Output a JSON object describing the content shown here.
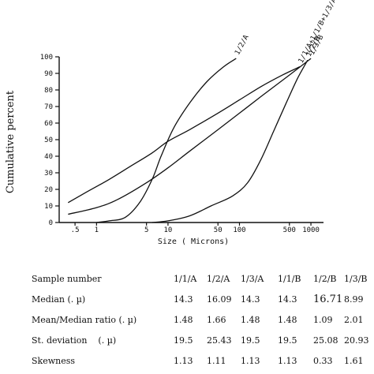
{
  "chart_data": {
    "type": "line",
    "x_scale": "log",
    "xlabel": "Size ( Microns)",
    "ylabel": "Cumulative percent",
    "ylim": [
      0,
      100
    ],
    "y_ticks": [
      "0",
      "10",
      "20",
      "30",
      "40",
      "50",
      "60",
      "70",
      "80",
      "90",
      "100"
    ],
    "x_ticks": [
      {
        "value": 0.5,
        "label": ".5"
      },
      {
        "value": 1,
        "label": "1"
      },
      {
        "value": 5,
        "label": "5"
      },
      {
        "value": 10,
        "label": "10"
      },
      {
        "value": 50,
        "label": "50"
      },
      {
        "value": 100,
        "label": "100"
      },
      {
        "value": 500,
        "label": "500"
      },
      {
        "value": 1000,
        "label": "1000"
      }
    ],
    "series": [
      {
        "name": "1/2/A",
        "x": [
          1,
          1.5,
          2.5,
          4,
          6,
          8,
          12,
          20,
          35,
          60,
          90
        ],
        "y": [
          0,
          1,
          3,
          12,
          26,
          40,
          57,
          72,
          85,
          94,
          99
        ]
      },
      {
        "name": "1/1/A+1/1/B+1/3/A",
        "x": [
          0.4,
          0.7,
          1.5,
          3,
          6,
          10,
          20,
          50,
          100,
          200,
          400,
          700
        ],
        "y": [
          12,
          18,
          26,
          34,
          42,
          49,
          56,
          66,
          74,
          82,
          89,
          94
        ]
      },
      {
        "name": "1/3/B",
        "x": [
          0.4,
          1,
          2,
          5,
          10,
          20,
          50,
          100,
          200,
          500,
          1000
        ],
        "y": [
          5,
          9,
          14,
          24,
          33,
          43,
          56,
          66,
          76,
          89,
          99
        ]
      },
      {
        "name": "1/2/B",
        "x": [
          6,
          10,
          20,
          40,
          80,
          130,
          200,
          300,
          450,
          650,
          900
        ],
        "y": [
          0,
          1,
          4,
          10,
          16,
          24,
          38,
          55,
          72,
          87,
          98
        ]
      }
    ]
  },
  "table": {
    "headers": [
      "Sample number",
      "1/1/A",
      "1/2/A",
      "1/3/A",
      "1/1/B",
      "1/2/B",
      "1/3/B"
    ],
    "rows": [
      {
        "label": "Median (. µ)",
        "values": [
          "14.3",
          "16.09",
          "14.3",
          "14.3",
          "16.71",
          "8.99"
        ]
      },
      {
        "label": "Mean/Median ratio (. µ)",
        "values": [
          "1.48",
          "1.66",
          "1.48",
          "1.48",
          "1.09",
          "2.01"
        ]
      },
      {
        "label": "St. deviation    (. µ)",
        "values": [
          "19.5",
          "25.43",
          "19.5",
          "19.5",
          "25.08",
          "20.93"
        ]
      },
      {
        "label": "Skewness",
        "values": [
          "1.13",
          "1.11",
          "1.13",
          "1.13",
          "0.33",
          "1.61"
        ]
      }
    ]
  }
}
